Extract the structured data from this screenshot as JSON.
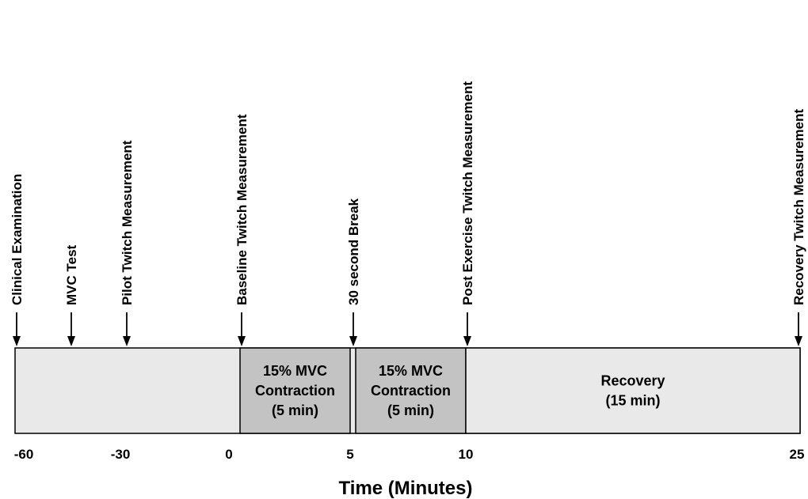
{
  "colors": {
    "background_bar": "#e9e9e9",
    "contraction": "#c3c3c3",
    "recovery": "#e9e9e9",
    "stroke": "#000000"
  },
  "events": [
    {
      "label": "Clinical Examination",
      "time": -60
    },
    {
      "label": "MVC Test",
      "time": -50
    },
    {
      "label": "Pilot Twitch Measurement",
      "time": -40
    },
    {
      "label": "Baseline Twitch Measurement",
      "time": 0.5
    },
    {
      "label": "30 second Break",
      "time": 5
    },
    {
      "label": "Post Exercise Twitch Measurement",
      "time": 10
    },
    {
      "label": "Recovery Twitch Measurement",
      "time": 25
    }
  ],
  "segments": [
    {
      "lines": [
        "15% MVC",
        "Contraction",
        "(5 min)"
      ],
      "start": 0.5,
      "end": 5,
      "kind": "contraction"
    },
    {
      "lines": [
        "15% MVC",
        "Contraction",
        "(5 min)"
      ],
      "start": 5.5,
      "end": 10,
      "kind": "contraction"
    },
    {
      "lines": [
        "Recovery",
        "(15 min)"
      ],
      "start": 10,
      "end": 25,
      "kind": "recovery"
    }
  ],
  "ticks": [
    {
      "label": "-60",
      "value": -60
    },
    {
      "label": "-30",
      "value": -30
    },
    {
      "label": "0",
      "value": 0
    },
    {
      "label": "5",
      "value": 5
    },
    {
      "label": "10",
      "value": 10
    },
    {
      "label": "25",
      "value": 25
    }
  ],
  "axis_title": "Time (Minutes)"
}
